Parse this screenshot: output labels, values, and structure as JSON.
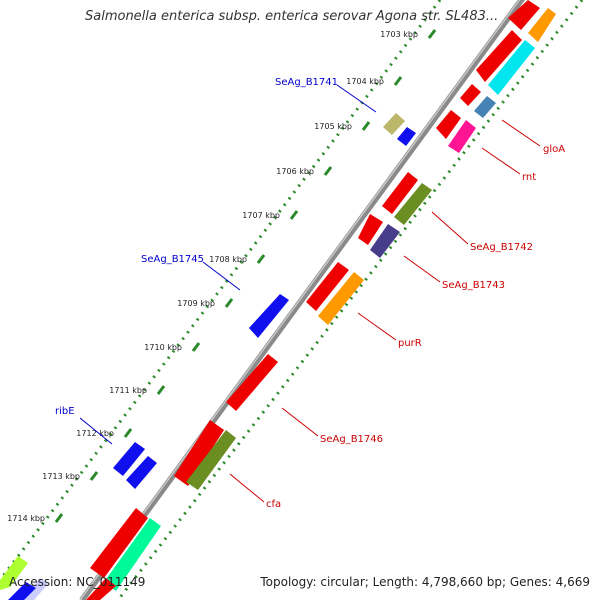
{
  "header": {
    "title": "Salmonella enterica subsp. enterica serovar Agona str. SL483..."
  },
  "footer": {
    "accession": "Accession: NC_011149",
    "summary": "Topology: circular; Length: 4,798,660 bp; Genes: 4,669"
  },
  "ticks": [
    "1703 kbp",
    "1704 kbp",
    "1705 kbp",
    "1706 kbp",
    "1707 kbp",
    "1708 kbp",
    "1709 kbp",
    "1710 kbp",
    "1711 kbp",
    "1712 kbp",
    "1713 kbp",
    "1714 kbp"
  ],
  "gene_labels_forward": [
    "SeAg_B1741",
    "SeAg_B1745",
    "ribE"
  ],
  "gene_labels_reverse": [
    "gloA",
    "rnt",
    "SeAg_B1742",
    "SeAg_B1743",
    "purR",
    "SeAg_B1746",
    "cfa"
  ],
  "colors": {
    "backbone": "#888888",
    "tick_dots": "#2a8a2a",
    "forward_label": "#0000cc",
    "reverse_label": "#cc0000",
    "gene_red": "#ee0000",
    "gene_blue": "#1010ee",
    "gene_orange": "#ff9900",
    "gene_olive": "#6b8e23",
    "gene_cyan": "#00e5ee",
    "gene_magenta": "#ff1493",
    "gene_steel": "#4682b4",
    "gene_khaki": "#bdb76b",
    "gene_slate": "#483d8b",
    "gene_aqua_green": "#00fa9a",
    "gene_lime": "#adff2f",
    "gene_lavender": "#ccccff"
  }
}
